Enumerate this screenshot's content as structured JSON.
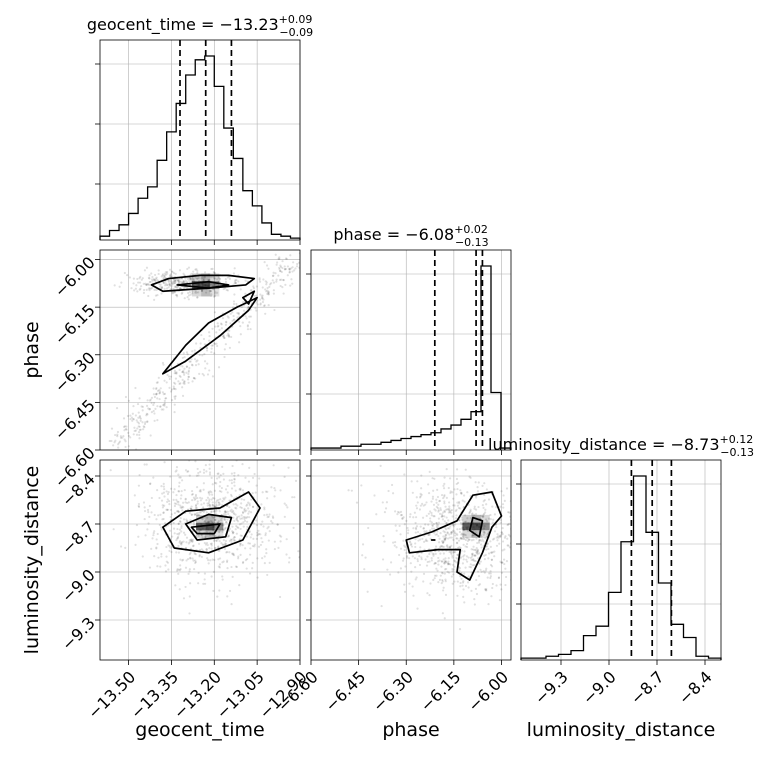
{
  "chart_data": {
    "type": "corner",
    "parameters": [
      {
        "name": "geocent_time",
        "axis_label": "geocent_time",
        "title": {
          "prefix": "geocent_time = ",
          "value": "−13.23",
          "plus": "+0.09",
          "minus": "−0.09"
        },
        "range": [
          -13.6,
          -12.9
        ],
        "ticks": [
          -13.5,
          -13.35,
          -13.2,
          -13.05,
          -12.9
        ],
        "tick_labels": [
          "−13.50",
          "−13.35",
          "−13.20",
          "−13.05",
          "−12.90"
        ],
        "quantiles": [
          -13.32,
          -13.23,
          -13.14
        ],
        "hist": [
          0.02,
          0.05,
          0.08,
          0.14,
          0.22,
          0.28,
          0.42,
          0.57,
          0.72,
          0.87,
          0.95,
          0.97,
          0.81,
          0.59,
          0.43,
          0.26,
          0.18,
          0.09,
          0.03,
          0.02,
          0.01
        ]
      },
      {
        "name": "phase",
        "axis_label": "phase",
        "title": {
          "prefix": "phase = ",
          "value": "−6.08",
          "plus": "+0.02",
          "minus": "−0.13"
        },
        "range": [
          -6.6,
          -5.97
        ],
        "ticks": [
          -6.6,
          -6.45,
          -6.3,
          -6.15,
          -6.0
        ],
        "tick_labels": [
          "−6.60",
          "−6.45",
          "−6.30",
          "−6.15",
          "−6.00"
        ],
        "quantiles": [
          -6.21,
          -6.08,
          -6.06
        ],
        "hist": [
          0.01,
          0.01,
          0.01,
          0.02,
          0.02,
          0.03,
          0.03,
          0.04,
          0.05,
          0.06,
          0.07,
          0.08,
          0.09,
          0.11,
          0.13,
          0.16,
          0.2,
          0.96,
          0.3,
          0.01
        ]
      },
      {
        "name": "luminosity_distance",
        "axis_label": "luminosity_distance",
        "title": {
          "prefix": "luminosity_distance = ",
          "value": "−8.73",
          "plus": "+0.12",
          "minus": "−0.13"
        },
        "range": [
          -9.55,
          -8.3
        ],
        "ticks": [
          -9.3,
          -9.0,
          -8.7,
          -8.4
        ],
        "tick_labels": [
          "−9.3",
          "−9.0",
          "−8.7",
          "−8.4"
        ],
        "quantiles": [
          -8.86,
          -8.73,
          -8.61
        ],
        "hist": [
          0.01,
          0.01,
          0.02,
          0.03,
          0.05,
          0.13,
          0.18,
          0.36,
          0.63,
          0.98,
          0.68,
          0.41,
          0.19,
          0.12,
          0.02,
          0.01
        ]
      }
    ],
    "pair_panels": [
      {
        "x": "geocent_time",
        "y": "phase",
        "contours": [
          [
            [
              -13.42,
              -6.08
            ],
            [
              -13.36,
              -6.06
            ],
            [
              -13.25,
              -6.05
            ],
            [
              -13.15,
              -6.05
            ],
            [
              -13.06,
              -6.06
            ],
            [
              -13.09,
              -6.08
            ],
            [
              -13.22,
              -6.09
            ],
            [
              -13.38,
              -6.1
            ]
          ],
          [
            [
              -13.33,
              -6.08
            ],
            [
              -13.22,
              -6.07
            ],
            [
              -13.15,
              -6.08
            ],
            [
              -13.22,
              -6.09
            ]
          ],
          [
            [
              -13.38,
              -6.36
            ],
            [
              -13.3,
              -6.27
            ],
            [
              -13.22,
              -6.2
            ],
            [
              -13.12,
              -6.15
            ],
            [
              -13.05,
              -6.12
            ],
            [
              -13.08,
              -6.16
            ],
            [
              -13.18,
              -6.24
            ],
            [
              -13.3,
              -6.32
            ]
          ],
          [
            [
              -13.1,
              -6.12
            ],
            [
              -13.06,
              -6.1
            ],
            [
              -13.08,
              -6.14
            ]
          ]
        ]
      },
      {
        "x": "geocent_time",
        "y": "luminosity_distance",
        "contours": [
          [
            [
              -13.38,
              -8.72
            ],
            [
              -13.3,
              -8.62
            ],
            [
              -13.18,
              -8.6
            ],
            [
              -13.08,
              -8.5
            ],
            [
              -13.04,
              -8.6
            ],
            [
              -13.1,
              -8.8
            ],
            [
              -13.22,
              -8.88
            ],
            [
              -13.34,
              -8.85
            ]
          ],
          [
            [
              -13.3,
              -8.7
            ],
            [
              -13.22,
              -8.64
            ],
            [
              -13.14,
              -8.66
            ],
            [
              -13.16,
              -8.78
            ],
            [
              -13.26,
              -8.8
            ]
          ],
          [
            [
              -13.28,
              -8.72
            ],
            [
              -13.18,
              -8.7
            ],
            [
              -13.2,
              -8.76
            ],
            [
              -13.26,
              -8.76
            ]
          ]
        ]
      },
      {
        "x": "phase",
        "y": "luminosity_distance",
        "contours": [
          [
            [
              -6.3,
              -8.8
            ],
            [
              -6.22,
              -8.75
            ],
            [
              -6.14,
              -8.68
            ],
            [
              -6.09,
              -8.52
            ],
            [
              -6.03,
              -8.5
            ],
            [
              -6.0,
              -8.65
            ],
            [
              -6.03,
              -8.72
            ],
            [
              -6.06,
              -8.88
            ],
            [
              -6.1,
              -9.05
            ],
            [
              -6.14,
              -9.0
            ],
            [
              -6.13,
              -8.86
            ],
            [
              -6.2,
              -8.86
            ],
            [
              -6.29,
              -8.88
            ]
          ],
          [
            [
              -6.09,
              -8.66
            ],
            [
              -6.06,
              -8.68
            ],
            [
              -6.07,
              -8.78
            ],
            [
              -6.1,
              -8.74
            ]
          ],
          [
            [
              -6.22,
              -8.8
            ],
            [
              -6.21,
              -8.8
            ]
          ]
        ]
      }
    ]
  }
}
